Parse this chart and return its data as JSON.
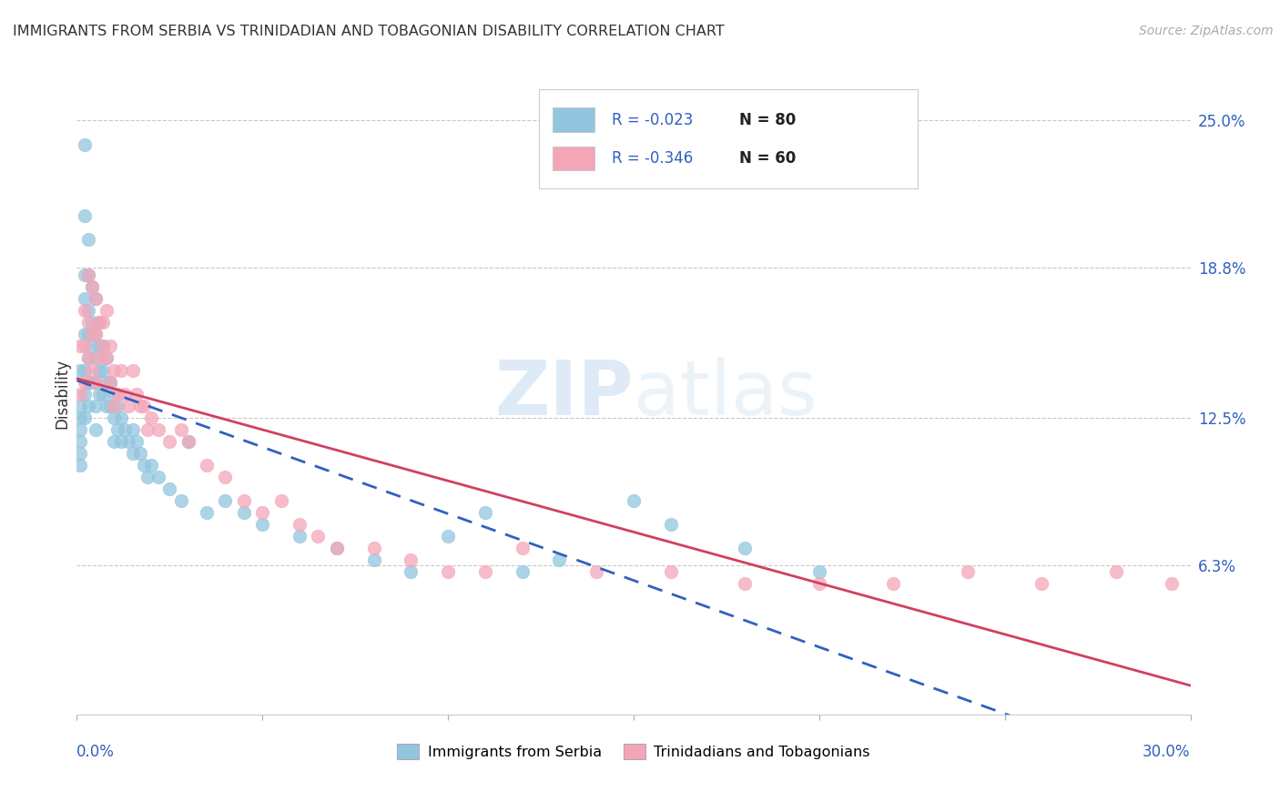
{
  "title": "IMMIGRANTS FROM SERBIA VS TRINIDADIAN AND TOBAGONIAN DISABILITY CORRELATION CHART",
  "source": "Source: ZipAtlas.com",
  "ylabel": "Disability",
  "ytick_labels": [
    "25.0%",
    "18.8%",
    "12.5%",
    "6.3%"
  ],
  "ytick_values": [
    0.25,
    0.188,
    0.125,
    0.063
  ],
  "xlim": [
    0.0,
    0.3
  ],
  "ylim": [
    0.0,
    0.27
  ],
  "watermark_zip": "ZIP",
  "watermark_atlas": "atlas",
  "legend_serbia_R": "R = -0.023",
  "legend_serbia_N": "N = 80",
  "legend_tt_R": "R = -0.346",
  "legend_tt_N": "N = 60",
  "serbia_color": "#92c5de",
  "tt_color": "#f4a6b8",
  "serbia_line_color": "#3060c0",
  "tt_line_color": "#d04060",
  "text_blue": "#3060c0",
  "text_dark": "#333333",
  "text_gray": "#aaaaaa",
  "background_color": "#ffffff",
  "serbia_x": [
    0.001,
    0.001,
    0.001,
    0.001,
    0.001,
    0.001,
    0.001,
    0.002,
    0.002,
    0.002,
    0.002,
    0.002,
    0.002,
    0.002,
    0.002,
    0.003,
    0.003,
    0.003,
    0.003,
    0.003,
    0.003,
    0.003,
    0.004,
    0.004,
    0.004,
    0.004,
    0.005,
    0.005,
    0.005,
    0.005,
    0.005,
    0.005,
    0.006,
    0.006,
    0.006,
    0.006,
    0.007,
    0.007,
    0.007,
    0.008,
    0.008,
    0.008,
    0.009,
    0.009,
    0.01,
    0.01,
    0.01,
    0.011,
    0.011,
    0.012,
    0.012,
    0.013,
    0.014,
    0.015,
    0.015,
    0.016,
    0.017,
    0.018,
    0.019,
    0.02,
    0.022,
    0.025,
    0.028,
    0.03,
    0.035,
    0.04,
    0.045,
    0.05,
    0.06,
    0.07,
    0.08,
    0.09,
    0.1,
    0.11,
    0.12,
    0.13,
    0.15,
    0.16,
    0.18,
    0.2
  ],
  "serbia_y": [
    0.145,
    0.13,
    0.125,
    0.12,
    0.115,
    0.11,
    0.105,
    0.24,
    0.21,
    0.185,
    0.175,
    0.16,
    0.145,
    0.135,
    0.125,
    0.2,
    0.185,
    0.17,
    0.16,
    0.15,
    0.14,
    0.13,
    0.18,
    0.165,
    0.155,
    0.14,
    0.175,
    0.16,
    0.15,
    0.14,
    0.13,
    0.12,
    0.165,
    0.155,
    0.145,
    0.135,
    0.155,
    0.145,
    0.135,
    0.15,
    0.14,
    0.13,
    0.14,
    0.13,
    0.135,
    0.125,
    0.115,
    0.13,
    0.12,
    0.125,
    0.115,
    0.12,
    0.115,
    0.12,
    0.11,
    0.115,
    0.11,
    0.105,
    0.1,
    0.105,
    0.1,
    0.095,
    0.09,
    0.115,
    0.085,
    0.09,
    0.085,
    0.08,
    0.075,
    0.07,
    0.065,
    0.06,
    0.075,
    0.085,
    0.06,
    0.065,
    0.09,
    0.08,
    0.07,
    0.06
  ],
  "tt_x": [
    0.001,
    0.001,
    0.002,
    0.002,
    0.002,
    0.003,
    0.003,
    0.003,
    0.004,
    0.004,
    0.004,
    0.005,
    0.005,
    0.005,
    0.006,
    0.006,
    0.007,
    0.007,
    0.008,
    0.008,
    0.009,
    0.009,
    0.01,
    0.01,
    0.011,
    0.012,
    0.013,
    0.014,
    0.015,
    0.016,
    0.017,
    0.018,
    0.019,
    0.02,
    0.022,
    0.025,
    0.028,
    0.03,
    0.035,
    0.04,
    0.045,
    0.05,
    0.055,
    0.06,
    0.065,
    0.07,
    0.08,
    0.09,
    0.1,
    0.11,
    0.12,
    0.14,
    0.16,
    0.18,
    0.2,
    0.22,
    0.24,
    0.26,
    0.28,
    0.295
  ],
  "tt_y": [
    0.155,
    0.135,
    0.17,
    0.155,
    0.14,
    0.185,
    0.165,
    0.15,
    0.18,
    0.16,
    0.145,
    0.175,
    0.16,
    0.14,
    0.165,
    0.15,
    0.165,
    0.155,
    0.17,
    0.15,
    0.155,
    0.14,
    0.145,
    0.13,
    0.135,
    0.145,
    0.135,
    0.13,
    0.145,
    0.135,
    0.13,
    0.13,
    0.12,
    0.125,
    0.12,
    0.115,
    0.12,
    0.115,
    0.105,
    0.1,
    0.09,
    0.085,
    0.09,
    0.08,
    0.075,
    0.07,
    0.07,
    0.065,
    0.06,
    0.06,
    0.07,
    0.06,
    0.06,
    0.055,
    0.055,
    0.055,
    0.06,
    0.055,
    0.06,
    0.055
  ]
}
